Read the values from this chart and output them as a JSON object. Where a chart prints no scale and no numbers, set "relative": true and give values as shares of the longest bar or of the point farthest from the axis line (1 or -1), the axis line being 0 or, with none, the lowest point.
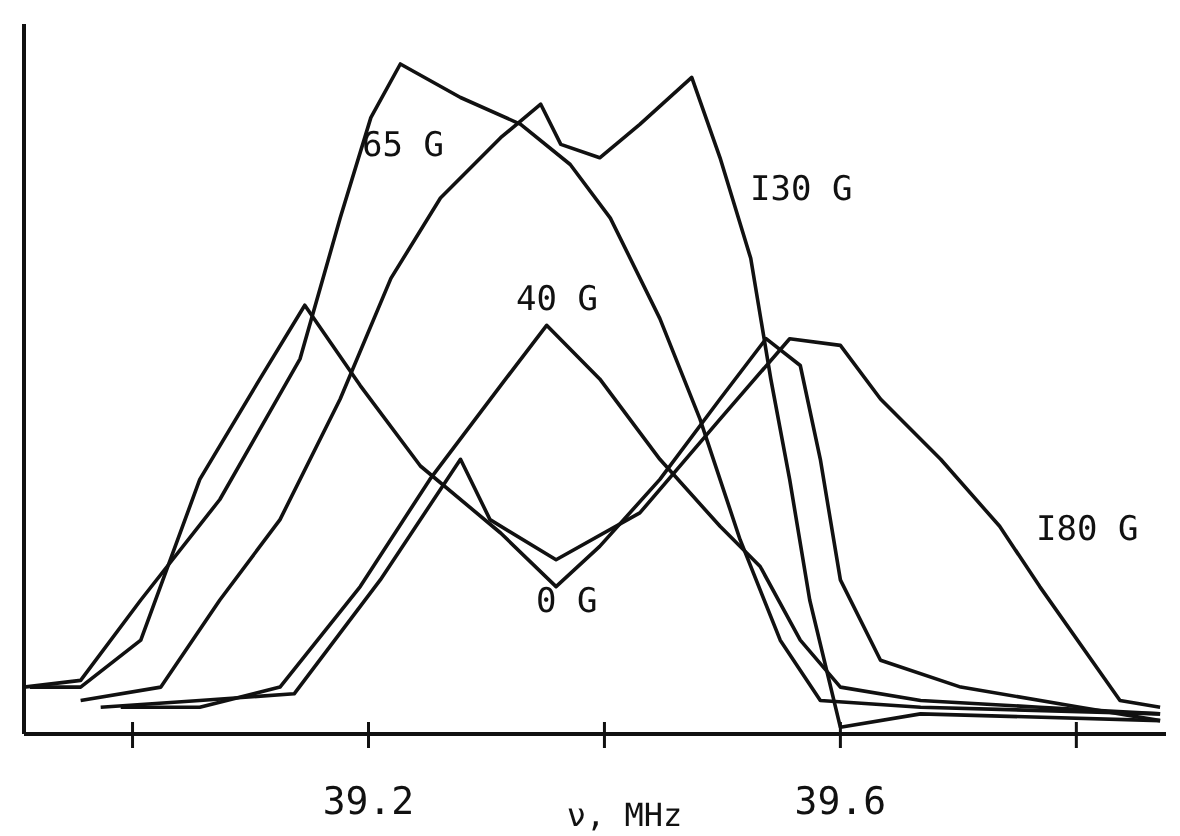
{
  "chart_data": {
    "type": "line",
    "relative": true,
    "xlabel": "ν, MHz",
    "xlim": [
      38.908,
      39.876
    ],
    "xticks": [
      {
        "value": 39.0,
        "label": null
      },
      39.2,
      {
        "value": 39.4,
        "label": null
      },
      39.6,
      {
        "value": 39.8,
        "label": null
      }
    ],
    "grid": false,
    "marker": "none",
    "line_style": "solid",
    "series": [
      {
        "name": "0 G",
        "color": "#111111",
        "x": [
          38.913,
          38.956,
          39.007,
          39.057,
          39.108,
          39.146,
          39.193,
          39.244,
          39.312,
          39.359,
          39.396,
          39.447,
          39.498,
          39.537,
          39.566,
          39.583,
          39.6,
          39.634,
          39.702,
          39.803,
          39.871
        ],
        "values": [
          0.07,
          0.07,
          0.14,
          0.38,
          0.53,
          0.64,
          0.52,
          0.4,
          0.3,
          0.22,
          0.28,
          0.38,
          0.5,
          0.59,
          0.55,
          0.41,
          0.23,
          0.11,
          0.07,
          0.04,
          0.02
        ]
      },
      {
        "name": "40 G",
        "color": "#111111",
        "x": [
          38.99,
          39.057,
          39.125,
          39.193,
          39.252,
          39.312,
          39.351,
          39.396,
          39.447,
          39.498,
          39.532,
          39.566,
          39.6,
          39.668,
          39.769,
          39.871
        ],
        "values": [
          0.04,
          0.04,
          0.07,
          0.22,
          0.38,
          0.52,
          0.61,
          0.53,
          0.41,
          0.31,
          0.25,
          0.14,
          0.07,
          0.05,
          0.04,
          0.03
        ]
      },
      {
        "name": "65 G",
        "color": "#111111",
        "x": [
          38.908,
          38.956,
          39.007,
          39.074,
          39.142,
          39.176,
          39.202,
          39.227,
          39.278,
          39.329,
          39.371,
          39.405,
          39.447,
          39.481,
          39.515,
          39.549,
          39.583,
          39.668,
          39.871
        ],
        "values": [
          0.07,
          0.08,
          0.2,
          0.35,
          0.56,
          0.77,
          0.92,
          1.0,
          0.95,
          0.91,
          0.85,
          0.77,
          0.62,
          0.47,
          0.29,
          0.14,
          0.05,
          0.04,
          0.03
        ]
      },
      {
        "name": "I30 G",
        "color": "#111111",
        "x": [
          38.956,
          39.024,
          39.074,
          39.125,
          39.176,
          39.219,
          39.261,
          39.312,
          39.346,
          39.363,
          39.396,
          39.43,
          39.474,
          39.498,
          39.524,
          39.541,
          39.557,
          39.574,
          39.6,
          39.668,
          39.871
        ],
        "values": [
          0.05,
          0.07,
          0.2,
          0.32,
          0.5,
          0.68,
          0.8,
          0.89,
          0.94,
          0.88,
          0.86,
          0.91,
          0.98,
          0.86,
          0.71,
          0.53,
          0.38,
          0.2,
          0.01,
          0.03,
          0.02
        ]
      },
      {
        "name": "I80 G",
        "color": "#111111",
        "x": [
          38.973,
          39.057,
          39.137,
          39.21,
          39.278,
          39.303,
          39.359,
          39.43,
          39.498,
          39.557,
          39.6,
          39.634,
          39.685,
          39.735,
          39.769,
          39.837,
          39.871
        ],
        "values": [
          0.04,
          0.05,
          0.06,
          0.23,
          0.41,
          0.32,
          0.26,
          0.33,
          0.47,
          0.59,
          0.58,
          0.5,
          0.41,
          0.31,
          0.22,
          0.05,
          0.04
        ]
      }
    ]
  }
}
